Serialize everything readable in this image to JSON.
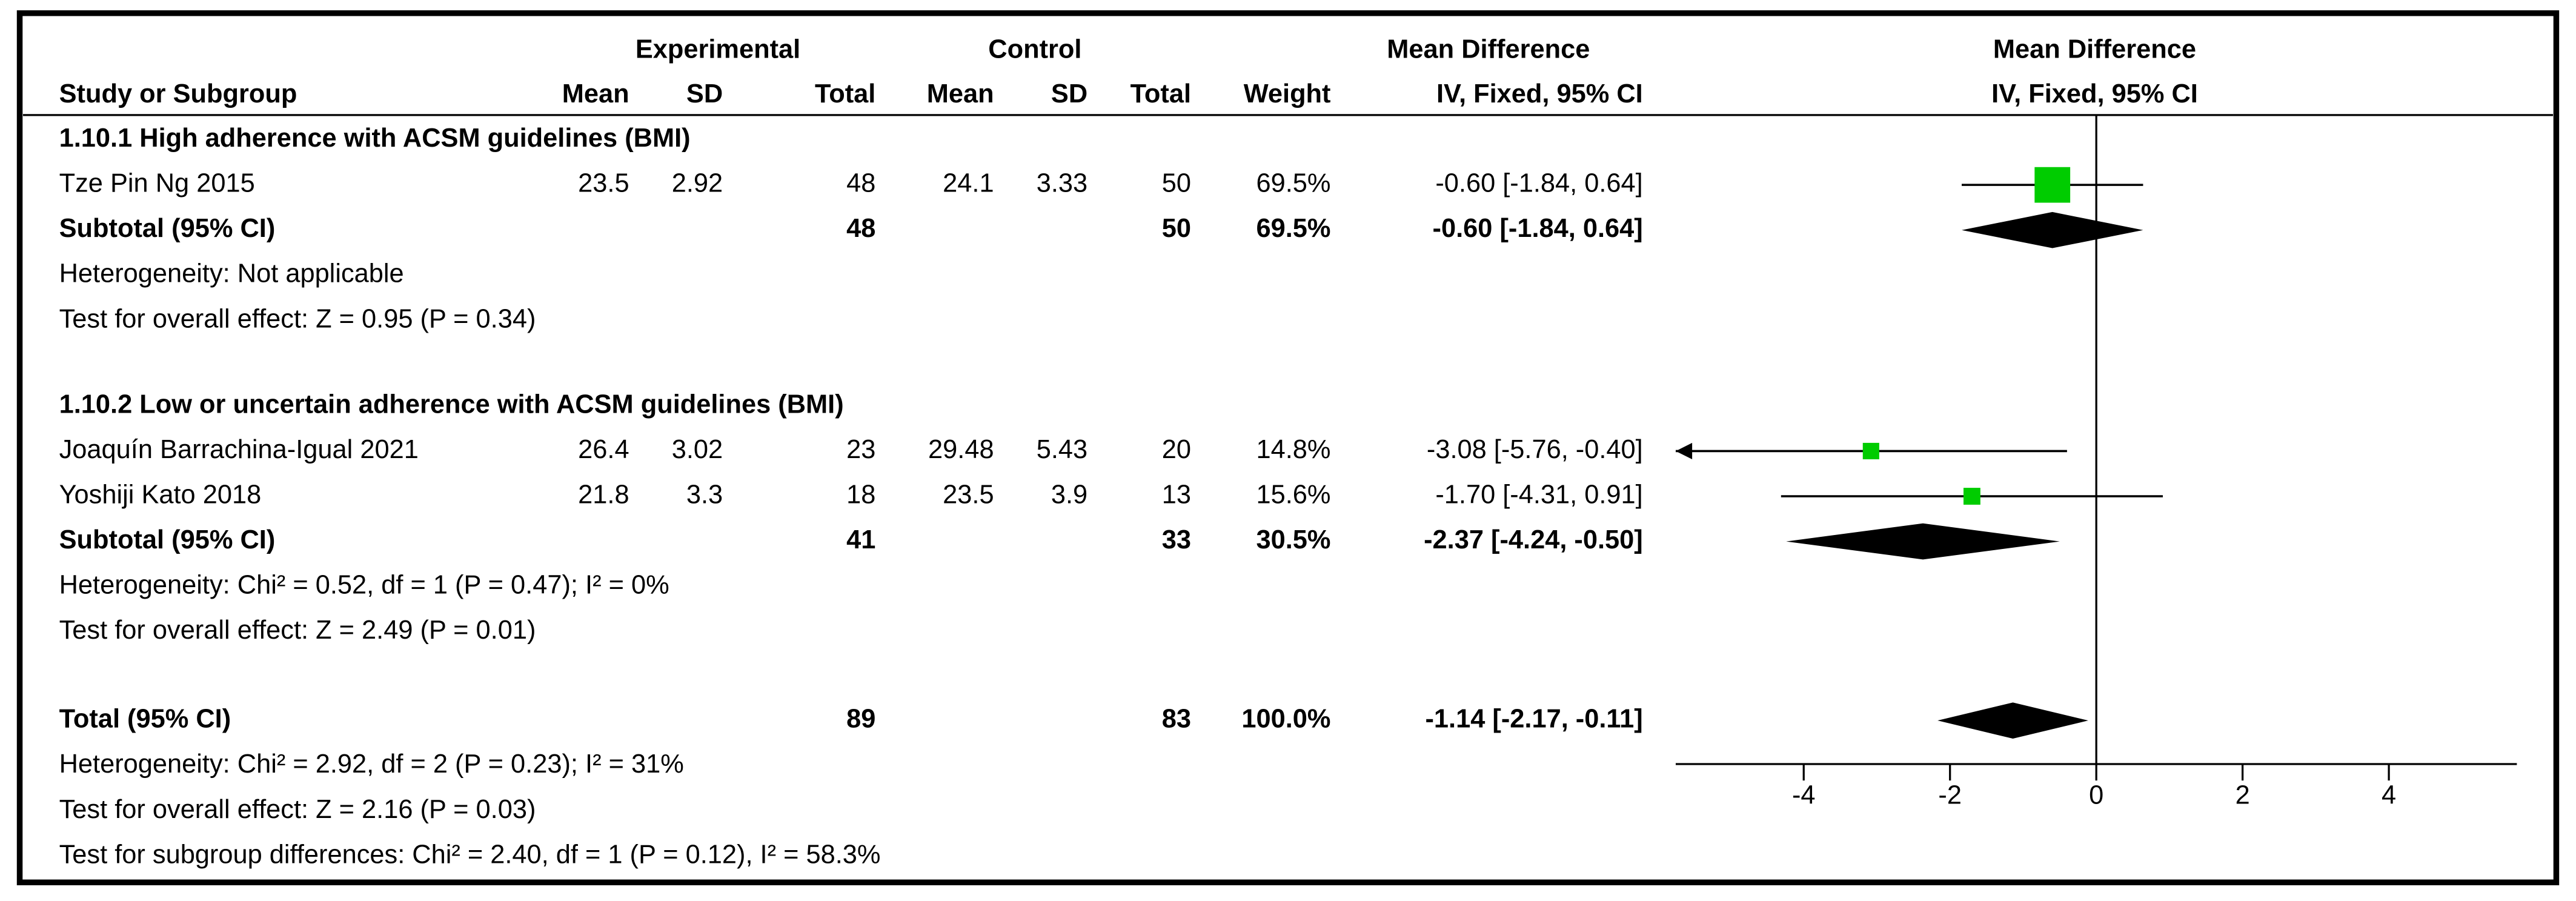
{
  "chart_data": {
    "type": "forest",
    "header": {
      "experimental": "Experimental",
      "control": "Control",
      "effect": "Mean Difference",
      "effect_method": "IV, Fixed, 95% CI",
      "plot_title": "Mean Difference",
      "plot_method": "IV, Fixed, 95% CI",
      "columns": [
        "Study or Subgroup",
        "Mean",
        "SD",
        "Total",
        "Mean",
        "SD",
        "Total",
        "Weight"
      ]
    },
    "subgroups": [
      {
        "title": "1.10.1 High adherence with ACSM guidelines (BMI)",
        "studies": [
          {
            "name": "Tze Pin Ng 2015",
            "exp_mean": 23.5,
            "exp_sd": 2.92,
            "exp_total": 48,
            "ctl_mean": 24.1,
            "ctl_sd": 3.33,
            "ctl_total": 50,
            "weight": 69.5,
            "weight_label": "69.5%",
            "md": -0.6,
            "lower": -1.84,
            "upper": 0.64,
            "ci_label": "-0.60 [-1.84, 0.64]"
          }
        ],
        "subtotal": {
          "name": "Subtotal (95% CI)",
          "exp_total": 48,
          "ctl_total": 50,
          "weight_label": "69.5%",
          "md": -0.6,
          "lower": -1.84,
          "upper": 0.64,
          "ci_label": "-0.60 [-1.84, 0.64]"
        },
        "heterogeneity": "Heterogeneity: Not applicable",
        "overall_effect": "Test for overall effect: Z = 0.95 (P = 0.34)"
      },
      {
        "title": "1.10.2 Low or uncertain adherence with ACSM guidelines (BMI)",
        "studies": [
          {
            "name": "Joaquín Barrachina-Igual 2021",
            "exp_mean": 26.4,
            "exp_sd": 3.02,
            "exp_total": 23,
            "ctl_mean": 29.48,
            "ctl_sd": 5.43,
            "ctl_total": 20,
            "weight": 14.8,
            "weight_label": "14.8%",
            "md": -3.08,
            "lower": -5.76,
            "upper": -0.4,
            "ci_label": "-3.08 [-5.76, -0.40]"
          },
          {
            "name": "Yoshiji Kato 2018",
            "exp_mean": 21.8,
            "exp_sd": 3.3,
            "exp_total": 18,
            "ctl_mean": 23.5,
            "ctl_sd": 3.9,
            "ctl_total": 13,
            "weight": 15.6,
            "weight_label": "15.6%",
            "md": -1.7,
            "lower": -4.31,
            "upper": 0.91,
            "ci_label": "-1.70 [-4.31, 0.91]"
          }
        ],
        "subtotal": {
          "name": "Subtotal (95% CI)",
          "exp_total": 41,
          "ctl_total": 33,
          "weight_label": "30.5%",
          "md": -2.37,
          "lower": -4.24,
          "upper": -0.5,
          "ci_label": "-2.37 [-4.24, -0.50]"
        },
        "heterogeneity": "Heterogeneity: Chi² = 0.52, df = 1 (P = 0.47); I² = 0%",
        "overall_effect": "Test for overall effect: Z = 2.49 (P = 0.01)"
      }
    ],
    "total": {
      "name": "Total (95% CI)",
      "exp_total": 89,
      "ctl_total": 83,
      "weight_label": "100.0%",
      "md": -1.14,
      "lower": -2.17,
      "upper": -0.11,
      "ci_label": "-1.14 [-2.17, -0.11]",
      "heterogeneity": "Heterogeneity: Chi² = 2.92, df = 2 (P = 0.23); I² = 31%",
      "overall_effect": "Test for overall effect: Z = 2.16 (P = 0.03)",
      "subgroup_differences": "Test for subgroup differences: Chi² = 2.40, df = 1 (P = 0.12), I² = 58.3%"
    },
    "xlim": [
      -5.75,
      5.75
    ],
    "xticks": [
      -4,
      -2,
      0,
      2,
      4
    ],
    "color": "#00cc00"
  }
}
